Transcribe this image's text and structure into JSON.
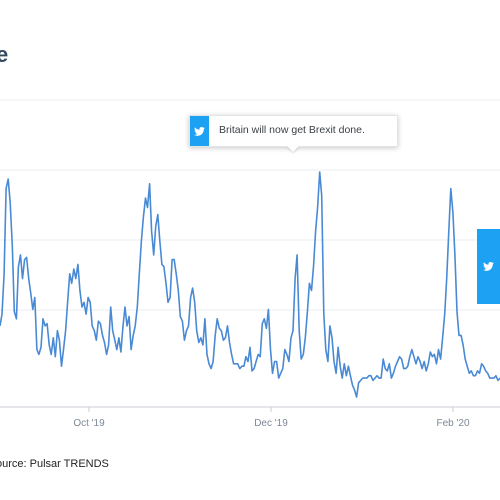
{
  "colors": {
    "line": "#4a8ad4",
    "twitter": "#1da1f2",
    "title": "#33495f",
    "axis": "#c8cdd3",
    "grid": "#ebeef1"
  },
  "title_fragment": "e",
  "source_text": "ource: Pulsar TRENDS",
  "annotation": {
    "text": "Britain will now get Brexit done.",
    "icon": "twitter-bird-icon"
  },
  "side_marker": {
    "icon": "twitter-bird-icon"
  },
  "chart_data": {
    "type": "line",
    "title": "",
    "xlabel": "",
    "ylabel": "",
    "x_ticks": [
      "Oct '19",
      "Dec '19",
      "Feb '20"
    ],
    "grid": "horizontal",
    "series": [
      {
        "values": [
          30,
          35,
          52,
          88,
          92,
          82,
          64,
          36,
          33,
          55,
          60,
          50,
          58,
          59,
          50,
          44,
          37,
          42,
          20,
          18,
          21,
          33,
          30,
          31,
          22,
          18,
          25,
          17,
          28,
          24,
          13,
          20,
          28,
          40,
          52,
          48,
          54,
          50,
          56,
          45,
          38,
          40,
          35,
          42,
          40,
          30,
          28,
          24,
          32,
          31,
          26,
          23,
          18,
          22,
          38,
          28,
          24,
          20,
          25,
          19,
          30,
          38,
          30,
          34,
          20,
          26,
          30,
          38,
          52,
          66,
          76,
          84,
          80,
          90,
          70,
          60,
          72,
          77,
          66,
          56,
          55,
          48,
          40,
          42,
          58,
          58,
          52,
          45,
          34,
          32,
          24,
          28,
          30,
          42,
          46,
          40,
          28,
          23,
          25,
          22,
          33,
          18,
          14,
          12,
          15,
          26,
          33,
          29,
          28,
          24,
          25,
          30,
          23,
          18,
          14,
          14,
          14,
          12,
          13,
          13,
          17,
          15,
          21,
          11,
          12,
          15,
          18,
          17,
          31,
          33,
          29,
          37,
          20,
          10,
          15,
          15,
          8,
          10,
          12,
          20,
          18,
          15,
          25,
          28,
          50,
          60,
          28,
          16,
          18,
          25,
          36,
          48,
          45,
          55,
          70,
          80,
          95,
          85,
          35,
          20,
          15,
          30,
          25,
          15,
          10,
          21,
          13,
          8,
          14,
          9,
          13,
          9,
          5,
          3,
          0,
          6,
          7,
          8,
          8,
          8,
          9,
          9,
          7,
          8,
          9,
          8,
          8,
          16,
          12,
          11,
          14,
          8,
          10,
          13,
          15,
          17,
          16,
          12,
          12,
          13,
          17,
          20,
          17,
          14,
          17,
          15,
          12,
          15,
          11,
          14,
          19,
          17,
          18,
          14,
          20,
          16,
          25,
          35,
          50,
          70,
          88,
          78,
          60,
          36,
          26,
          26,
          22,
          16,
          13,
          10,
          11,
          9,
          9,
          11,
          10,
          14,
          13,
          11,
          10,
          8,
          8,
          8,
          9,
          7,
          8
        ]
      }
    ]
  }
}
